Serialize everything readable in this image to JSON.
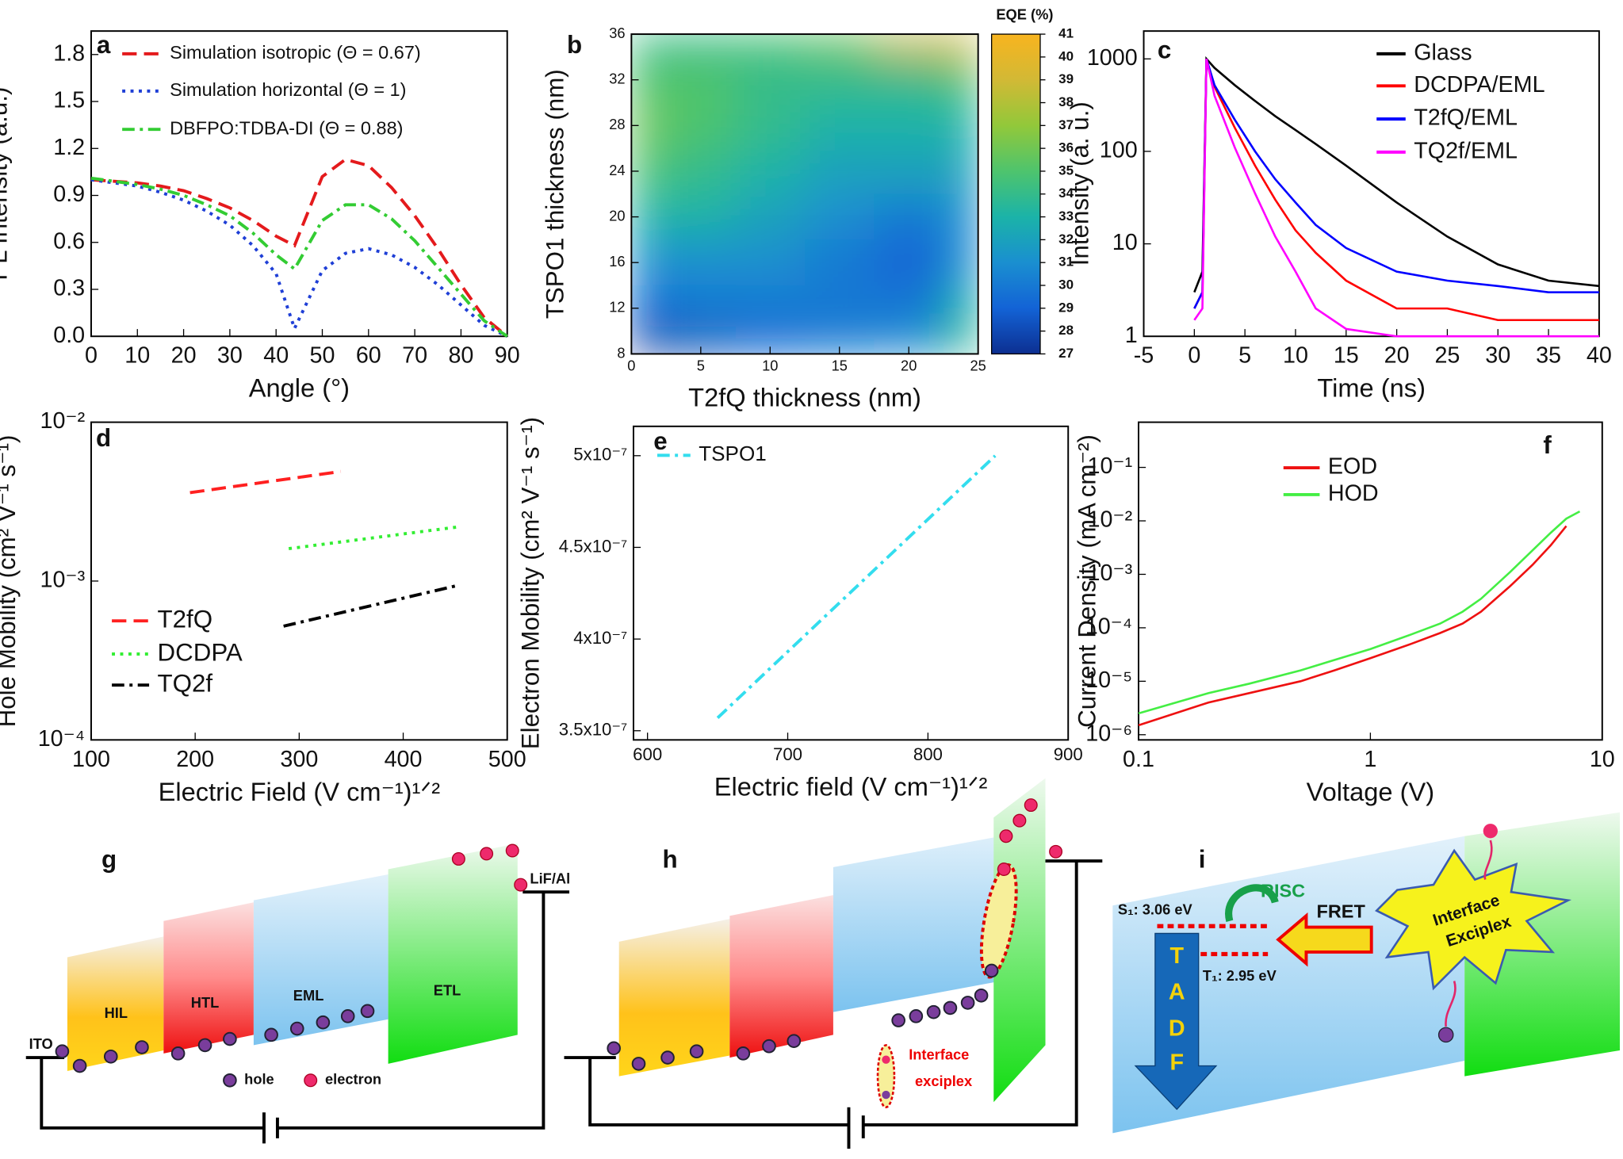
{
  "chart_data": [
    {
      "type": "line",
      "panel": "a",
      "xlabel": "Angle (°)",
      "ylabel": "PL Intensity (a.u.)",
      "xlim": [
        0,
        90
      ],
      "ylim": [
        0,
        1.95
      ],
      "xticks": [
        0,
        10,
        20,
        30,
        40,
        50,
        60,
        70,
        80,
        90
      ],
      "yticks": [
        {
          "value": 0,
          "label": "0.0"
        },
        0.3,
        0.6,
        0.9,
        1.2,
        1.5,
        1.8
      ],
      "x": [
        0,
        5,
        10,
        15,
        20,
        25,
        30,
        35,
        40,
        44,
        50,
        55,
        60,
        65,
        70,
        75,
        80,
        85,
        90
      ],
      "series": [
        {
          "name": "Simulation isotropic (Θ = 0.67)",
          "color": "#e41a1c",
          "dash": "dashed",
          "values": [
            1.0,
            0.99,
            0.98,
            0.96,
            0.93,
            0.88,
            0.82,
            0.74,
            0.64,
            0.58,
            1.02,
            1.13,
            1.09,
            0.95,
            0.77,
            0.56,
            0.33,
            0.12,
            0.0
          ]
        },
        {
          "name": "Simulation horizontal (Θ = 1)",
          "color": "#1f3fd6",
          "dash": "dotted",
          "values": [
            1.0,
            0.98,
            0.96,
            0.92,
            0.87,
            0.8,
            0.71,
            0.58,
            0.4,
            0.05,
            0.42,
            0.53,
            0.56,
            0.52,
            0.44,
            0.33,
            0.2,
            0.07,
            0.0
          ]
        },
        {
          "name": "DBFPO:TDBA-DI (Θ = 0.88)",
          "color": "#33cc33",
          "dash": "dashdot",
          "values": [
            1.01,
            0.99,
            0.97,
            0.94,
            0.9,
            0.84,
            0.77,
            0.66,
            0.52,
            0.43,
            0.74,
            0.84,
            0.84,
            0.75,
            0.61,
            0.44,
            0.27,
            0.1,
            0.0
          ]
        }
      ]
    },
    {
      "type": "heatmap",
      "panel": "b",
      "xlabel": "T2fQ thickness (nm)",
      "ylabel": "TSPO1 thickness (nm)",
      "colorbar_label": "EQE (%)",
      "xlim": [
        0,
        25
      ],
      "ylim": [
        8,
        36
      ],
      "xticks": [
        0,
        5,
        10,
        15,
        20,
        25
      ],
      "yticks": [
        8,
        12,
        16,
        20,
        24,
        28,
        32,
        36
      ],
      "x": [
        0,
        5,
        10,
        15,
        20,
        25
      ],
      "y": [
        8,
        12,
        16,
        20,
        24,
        28,
        32,
        36
      ],
      "z": [
        [
          27,
          28,
          29,
          30,
          31,
          34
        ],
        [
          29,
          30,
          30,
          30,
          30,
          33
        ],
        [
          31,
          31,
          31,
          30,
          29,
          31
        ],
        [
          33,
          33,
          32,
          31,
          30,
          31
        ],
        [
          35,
          34,
          33,
          32,
          32,
          32
        ],
        [
          36,
          35,
          34,
          33,
          33,
          33
        ],
        [
          35,
          35,
          34,
          34,
          34,
          35
        ],
        [
          34,
          34,
          35,
          36,
          39,
          40
        ]
      ],
      "zlim": [
        27,
        41
      ],
      "zticks": [
        27,
        28,
        29,
        30,
        31,
        32,
        33,
        34,
        35,
        36,
        37,
        38,
        39,
        40,
        41
      ],
      "colorscale": [
        "#0c2f91",
        "#1363d6",
        "#1a8fd0",
        "#1bb3a8",
        "#4ec46d",
        "#92c83a",
        "#d2b935",
        "#f8b41f"
      ]
    },
    {
      "type": "line",
      "panel": "c",
      "xlabel": "Time (ns)",
      "ylabel": "Intensity (a. u.)",
      "ylog": true,
      "xlim": [
        -5,
        40
      ],
      "ylim": [
        1,
        2000
      ],
      "xticks": [
        -5,
        0,
        5,
        10,
        15,
        20,
        25,
        30,
        35,
        40
      ],
      "yticks": [
        1,
        10,
        100,
        1000
      ],
      "x": [
        0,
        0.8,
        1.2,
        2,
        4,
        6,
        8,
        10,
        12,
        15,
        20,
        25,
        30,
        35,
        40
      ],
      "series": [
        {
          "name": "Glass",
          "color": "#000000",
          "dash": "solid",
          "values": [
            3,
            5,
            1000,
            800,
            520,
            350,
            240,
            170,
            120,
            70,
            28,
            12,
            6,
            4,
            3.5
          ]
        },
        {
          "name": "DCDPA/EML",
          "color": "#ff0000",
          "dash": "solid",
          "values": [
            2,
            3,
            1000,
            500,
            180,
            70,
            30,
            14,
            8,
            4,
            2,
            2,
            1.5,
            1.5,
            1.5
          ]
        },
        {
          "name": "T2fQ/EML",
          "color": "#0000ff",
          "dash": "solid",
          "values": [
            2,
            3,
            1000,
            520,
            220,
            100,
            50,
            28,
            16,
            9,
            5,
            4,
            3.5,
            3,
            3
          ]
        },
        {
          "name": "TQ2f/EML",
          "color": "#ff00ff",
          "dash": "solid",
          "values": [
            1.5,
            2,
            1000,
            400,
            110,
            35,
            12,
            5,
            2,
            1.2,
            1,
            1,
            1,
            1,
            1
          ]
        }
      ]
    },
    {
      "type": "line",
      "panel": "d",
      "xlabel": "Electric Field (V cm⁻¹)¹ᐟ²",
      "ylabel": "Hole Mobility (cm² V⁻¹ s⁻¹)",
      "ylog": true,
      "xlim": [
        100,
        500
      ],
      "ylim": [
        0.0001,
        0.01
      ],
      "xticks": [
        100,
        200,
        300,
        400,
        500
      ],
      "yticks": [
        {
          "value": 0.0001,
          "label": "10⁻⁴"
        },
        {
          "value": 0.001,
          "label": "10⁻³"
        },
        {
          "value": 0.01,
          "label": "10⁻²"
        }
      ],
      "series": [
        {
          "name": "T2fQ",
          "color": "#ff2020",
          "dash": "dashed",
          "x": [
            195,
            340
          ],
          "values": [
            0.0036,
            0.0049
          ]
        },
        {
          "name": "DCDPA",
          "color": "#33ee33",
          "dash": "dotted",
          "x": [
            290,
            455
          ],
          "values": [
            0.0016,
            0.0022
          ]
        },
        {
          "name": "TQ2f",
          "color": "#000000",
          "dash": "dashdot",
          "x": [
            285,
            450
          ],
          "values": [
            0.00052,
            0.00093
          ]
        }
      ]
    },
    {
      "type": "line",
      "panel": "e",
      "xlabel": "Electric field (V cm⁻¹)¹ᐟ²",
      "ylabel": "Electron Mobility (cm² V⁻¹ s⁻¹)",
      "xlim": [
        590,
        900
      ],
      "ylim": [
        3.45e-07,
        5.16e-07
      ],
      "xticks": [
        600,
        700,
        800,
        900
      ],
      "yticks": [
        {
          "value": 3.5e-07,
          "label": "3.5x10⁻⁷"
        },
        {
          "value": 4e-07,
          "label": "4x10⁻⁷"
        },
        {
          "value": 4.5e-07,
          "label": "4.5x10⁻⁷"
        },
        {
          "value": 5e-07,
          "label": "5x10⁻⁷"
        }
      ],
      "series": [
        {
          "name": "TSPO1",
          "color": "#33ddee",
          "dash": "dashdot",
          "x": [
            650,
            848
          ],
          "values": [
            3.57e-07,
            5e-07
          ]
        }
      ]
    },
    {
      "type": "line",
      "panel": "f",
      "xlabel": "Voltage (V)",
      "ylabel": "Current Density (mA cm⁻²)",
      "xlog": true,
      "ylog": true,
      "xlim": [
        0.1,
        10
      ],
      "ylim": [
        8e-07,
        0.7
      ],
      "xticks": [
        0.1,
        1,
        10
      ],
      "yticks": [
        {
          "value": 1e-06,
          "label": "10⁻⁶"
        },
        {
          "value": 1e-05,
          "label": "10⁻⁵"
        },
        {
          "value": 0.0001,
          "label": "10⁻⁴"
        },
        {
          "value": 0.001,
          "label": "10⁻³"
        },
        {
          "value": 0.01,
          "label": "10⁻²"
        },
        {
          "value": 0.1,
          "label": "10⁻¹"
        }
      ],
      "series": [
        {
          "name": "EOD",
          "color": "#ee1111",
          "dash": "solid",
          "x": [
            0.1,
            0.2,
            0.3,
            0.5,
            0.7,
            1,
            1.5,
            2,
            2.5,
            3,
            4,
            5,
            6,
            7
          ],
          "values": [
            1.5e-06,
            4e-06,
            6e-06,
            1e-05,
            1.6e-05,
            2.7e-05,
            5e-05,
            8e-05,
            0.00012,
            0.0002,
            0.0006,
            0.0015,
            0.0035,
            0.008
          ]
        },
        {
          "name": "HOD",
          "color": "#44ee44",
          "dash": "solid",
          "x": [
            0.1,
            0.2,
            0.3,
            0.5,
            0.7,
            1,
            1.5,
            2,
            2.5,
            3,
            4,
            5,
            6,
            7,
            8
          ],
          "values": [
            2.5e-06,
            6e-06,
            9e-06,
            1.6e-05,
            2.5e-05,
            4e-05,
            7.5e-05,
            0.00012,
            0.0002,
            0.00035,
            0.0011,
            0.0028,
            0.006,
            0.011,
            0.015
          ]
        }
      ]
    }
  ],
  "diagrams": {
    "g": {
      "panel": "g",
      "ito": "ITO",
      "hil": "HIL",
      "htl": "HTL",
      "eml": "EML",
      "etl": "ETL",
      "cathode": "LiF/Al",
      "hole": "hole",
      "electron": "electron"
    },
    "h": {
      "panel": "h",
      "exciplex_1": "Interface",
      "exciplex_2": "exciplex"
    },
    "i": {
      "panel": "i",
      "s1": "S₁: 3.06 eV",
      "t1": "T₁: 2.95 eV",
      "risc": "RISC",
      "fret": "FRET",
      "tadf": [
        "T",
        "A",
        "D",
        "F"
      ],
      "exciplex_1": "Interface",
      "exciplex_2": "Exciplex"
    }
  }
}
